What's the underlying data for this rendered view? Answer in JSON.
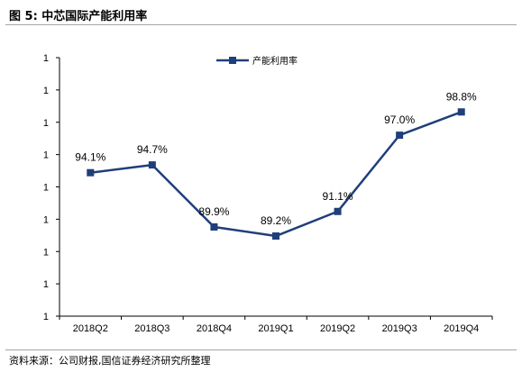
{
  "header": {
    "title": "图 5:  中芯国际产能利用率"
  },
  "footer": {
    "source": "资料来源：公司财报,国信证券经济研究所整理"
  },
  "chart_data": {
    "type": "line",
    "title": "",
    "xlabel": "",
    "ylabel": "",
    "categories": [
      "2018Q2",
      "2018Q3",
      "2018Q4",
      "2019Q1",
      "2019Q2",
      "2019Q3",
      "2019Q4"
    ],
    "series": [
      {
        "name": "产能利用率",
        "values": [
          94.1,
          94.7,
          89.9,
          89.2,
          91.1,
          97.0,
          98.8
        ],
        "data_labels": [
          "94.1%",
          "94.7%",
          "89.9%",
          "89.2%",
          "91.1%",
          "97.0%",
          "98.8%"
        ],
        "color": "#1f3f7a"
      }
    ],
    "ylim": [
      83,
      103
    ],
    "ytick_values": [
      83,
      85.5,
      88,
      90.5,
      93,
      95.5,
      98,
      100.5,
      103
    ],
    "ytick_labels": [
      "1",
      "1",
      "1",
      "1",
      "1",
      "1",
      "1",
      "1",
      "1"
    ],
    "grid": false,
    "legend_position": "top-center",
    "marker": "square"
  }
}
